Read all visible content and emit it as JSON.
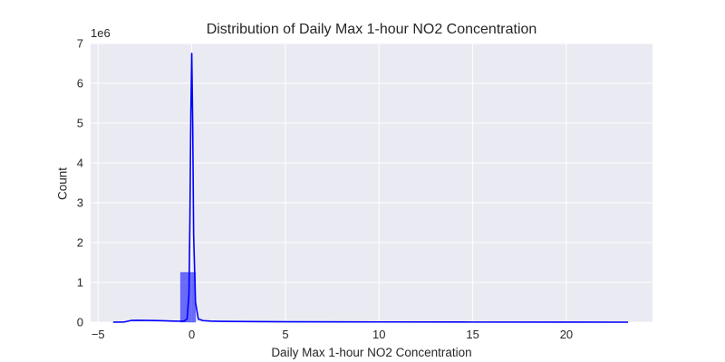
{
  "chart_data": {
    "type": "histogram",
    "title": "Distribution of Daily Max 1-hour NO2 Concentration",
    "xlabel": "Daily Max 1-hour NO2 Concentration",
    "ylabel": "Count",
    "y_offset_label": "1e6",
    "xlim": [
      -5.4,
      24.6
    ],
    "ylim": [
      0,
      7000000
    ],
    "x_ticks": [
      -5,
      0,
      5,
      10,
      15,
      20
    ],
    "y_ticks": [
      0,
      1000000,
      2000000,
      3000000,
      4000000,
      5000000,
      6000000,
      7000000
    ],
    "y_tick_labels": [
      "0",
      "1",
      "2",
      "3",
      "4",
      "5",
      "6",
      "7"
    ],
    "grid": true,
    "bar_color": "#0000ff",
    "bar_opacity": 0.55,
    "kde_color": "#0000ff",
    "plot_background": "#eaeaf2",
    "bins": [
      {
        "x0": -0.6,
        "x1": 0.2,
        "count": 1250000
      }
    ],
    "kde": {
      "x": [
        -4.2,
        -3.6,
        -3.4,
        -3.2,
        -2.9,
        -2.4,
        -2.0,
        -1.5,
        -1.0,
        -0.6,
        -0.4,
        -0.25,
        -0.15,
        -0.1,
        -0.05,
        0.0,
        0.05,
        0.1,
        0.2,
        0.35,
        0.6,
        1.0,
        1.5,
        3.0,
        5.0,
        10.0,
        15.0,
        20.0,
        23.3
      ],
      "y": [
        0,
        5000,
        25000,
        45000,
        48000,
        45000,
        42000,
        35000,
        28000,
        25000,
        30000,
        80000,
        700000,
        2500000,
        5200000,
        6750000,
        5000000,
        2200000,
        500000,
        80000,
        40000,
        28000,
        22000,
        15000,
        10000,
        6000,
        3000,
        1500,
        0
      ]
    }
  }
}
